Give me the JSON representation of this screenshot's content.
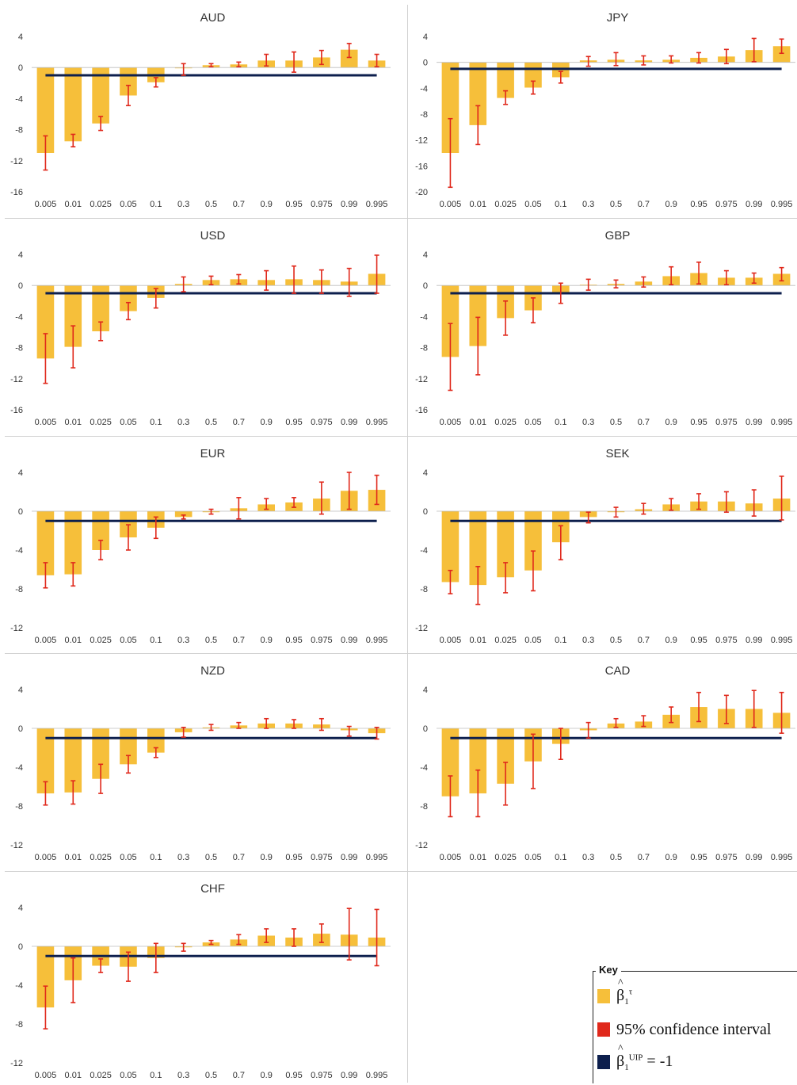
{
  "colors": {
    "bar": "#f6bf3a",
    "ci": "#e0281b",
    "uip": "#0d1f4d",
    "axis": "#444444",
    "text": "#333333"
  },
  "chart_data": [
    {
      "type": "bar",
      "title": "AUD",
      "categories": [
        "0.005",
        "0.01",
        "0.025",
        "0.05",
        "0.1",
        "0.3",
        "0.5",
        "0.7",
        "0.9",
        "0.95",
        "0.975",
        "0.99",
        "0.995"
      ],
      "ylim": [
        -16,
        4
      ],
      "yticks": [
        4,
        0,
        -4,
        -8,
        -12,
        -16
      ],
      "series": [
        {
          "values": [
            -11.0,
            -9.5,
            -7.2,
            -3.6,
            -1.9,
            -0.1,
            0.3,
            0.4,
            0.9,
            0.9,
            1.3,
            2.3,
            0.9
          ]
        },
        {
          "ci_low": [
            -13.2,
            -10.2,
            -8.1,
            -4.9,
            -2.5,
            -1.0,
            0.1,
            0.1,
            0.2,
            -0.6,
            0.4,
            1.3,
            0.1
          ],
          "ci_high": [
            -8.8,
            -8.6,
            -6.3,
            -2.3,
            -1.3,
            0.5,
            0.5,
            0.7,
            1.7,
            2.0,
            2.2,
            3.1,
            1.7
          ]
        },
        {
          "uip": -1
        }
      ]
    },
    {
      "type": "bar",
      "title": "JPY",
      "categories": [
        "0.005",
        "0.01",
        "0.025",
        "0.05",
        "0.1",
        "0.3",
        "0.5",
        "0.7",
        "0.9",
        "0.95",
        "0.975",
        "0.99",
        "0.995"
      ],
      "ylim": [
        -20,
        4
      ],
      "yticks": [
        4,
        0,
        -4,
        -8,
        -12,
        -16,
        -20
      ],
      "series": [
        {
          "values": [
            -14.0,
            -9.7,
            -5.5,
            -3.9,
            -2.3,
            0.3,
            0.4,
            0.3,
            0.4,
            0.7,
            0.9,
            1.9,
            2.5
          ]
        },
        {
          "ci_low": [
            -19.3,
            -12.7,
            -6.5,
            -4.9,
            -3.2,
            -0.6,
            -0.5,
            -0.4,
            -0.1,
            -0.1,
            -0.2,
            0.1,
            1.4
          ],
          "ci_high": [
            -8.7,
            -6.7,
            -4.4,
            -2.9,
            -1.4,
            0.9,
            1.5,
            1.0,
            1.0,
            1.5,
            2.0,
            3.7,
            3.6
          ]
        },
        {
          "uip": -1
        }
      ]
    },
    {
      "type": "bar",
      "title": "USD",
      "categories": [
        "0.005",
        "0.01",
        "0.025",
        "0.05",
        "0.1",
        "0.3",
        "0.5",
        "0.7",
        "0.9",
        "0.95",
        "0.975",
        "0.99",
        "0.995"
      ],
      "ylim": [
        -16,
        4
      ],
      "yticks": [
        4,
        0,
        -4,
        -8,
        -12,
        -16
      ],
      "series": [
        {
          "values": [
            -9.4,
            -7.9,
            -5.9,
            -3.3,
            -1.6,
            0.2,
            0.7,
            0.8,
            0.7,
            0.8,
            0.7,
            0.5,
            1.5
          ]
        },
        {
          "ci_low": [
            -12.6,
            -10.6,
            -7.1,
            -4.4,
            -2.9,
            -0.8,
            0.1,
            0.2,
            -0.6,
            -1.0,
            -1.0,
            -1.4,
            -1.0
          ],
          "ci_high": [
            -6.2,
            -5.2,
            -4.7,
            -2.2,
            -0.4,
            1.1,
            1.2,
            1.4,
            1.9,
            2.5,
            2.0,
            2.2,
            3.9
          ]
        },
        {
          "uip": -1
        }
      ]
    },
    {
      "type": "bar",
      "title": "GBP",
      "categories": [
        "0.005",
        "0.01",
        "0.025",
        "0.05",
        "0.1",
        "0.3",
        "0.5",
        "0.7",
        "0.9",
        "0.95",
        "0.975",
        "0.99",
        "0.995"
      ],
      "ylim": [
        -16,
        4
      ],
      "yticks": [
        4,
        0,
        -4,
        -8,
        -12,
        -16
      ],
      "series": [
        {
          "values": [
            -9.2,
            -7.8,
            -4.2,
            -3.2,
            -1.0,
            0.1,
            0.2,
            0.5,
            1.2,
            1.6,
            1.0,
            1.0,
            1.5
          ]
        },
        {
          "ci_low": [
            -13.5,
            -11.5,
            -6.4,
            -4.8,
            -2.3,
            -0.6,
            -0.3,
            -0.2,
            0.1,
            0.2,
            0.1,
            0.3,
            0.6
          ],
          "ci_high": [
            -4.9,
            -4.1,
            -2.0,
            -1.6,
            0.3,
            0.8,
            0.7,
            1.1,
            2.4,
            3.0,
            1.9,
            1.6,
            2.3
          ]
        },
        {
          "uip": -1
        }
      ]
    },
    {
      "type": "bar",
      "title": "EUR",
      "categories": [
        "0.005",
        "0.01",
        "0.025",
        "0.05",
        "0.1",
        "0.3",
        "0.5",
        "0.7",
        "0.9",
        "0.95",
        "0.975",
        "0.99",
        "0.995"
      ],
      "ylim": [
        -12,
        4
      ],
      "yticks": [
        4,
        0,
        -4,
        -8,
        -12
      ],
      "series": [
        {
          "values": [
            -6.6,
            -6.5,
            -4.0,
            -2.7,
            -1.7,
            -0.6,
            -0.1,
            0.3,
            0.7,
            0.9,
            1.3,
            2.1,
            2.2
          ]
        },
        {
          "ci_low": [
            -7.9,
            -7.7,
            -5.0,
            -4.0,
            -2.8,
            -0.8,
            -0.3,
            -0.8,
            0.2,
            0.4,
            -0.3,
            0.2,
            0.7
          ],
          "ci_high": [
            -5.3,
            -5.3,
            -3.0,
            -1.4,
            -0.6,
            -0.4,
            0.2,
            1.4,
            1.3,
            1.4,
            3.0,
            4.0,
            3.7
          ]
        },
        {
          "uip": -1
        }
      ]
    },
    {
      "type": "bar",
      "title": "SEK",
      "categories": [
        "0.005",
        "0.01",
        "0.025",
        "0.05",
        "0.1",
        "0.3",
        "0.5",
        "0.7",
        "0.9",
        "0.95",
        "0.975",
        "0.99",
        "0.995"
      ],
      "ylim": [
        -12,
        4
      ],
      "yticks": [
        4,
        0,
        -4,
        -8,
        -12
      ],
      "series": [
        {
          "values": [
            -7.3,
            -7.6,
            -6.8,
            -6.1,
            -3.2,
            -0.6,
            -0.1,
            0.2,
            0.7,
            1.0,
            1.0,
            0.8,
            1.3
          ]
        },
        {
          "ci_low": [
            -8.5,
            -9.6,
            -8.4,
            -8.2,
            -5.0,
            -1.2,
            -0.6,
            -0.3,
            0.1,
            0.2,
            -0.1,
            -0.5,
            -0.9
          ],
          "ci_high": [
            -6.1,
            -5.7,
            -5.3,
            -4.1,
            -1.5,
            -0.1,
            0.4,
            0.8,
            1.3,
            1.8,
            2.0,
            2.2,
            3.6
          ]
        },
        {
          "uip": -1
        }
      ]
    },
    {
      "type": "bar",
      "title": "NZD",
      "categories": [
        "0.005",
        "0.01",
        "0.025",
        "0.05",
        "0.1",
        "0.3",
        "0.5",
        "0.7",
        "0.9",
        "0.95",
        "0.975",
        "0.99",
        "0.995"
      ],
      "ylim": [
        -12,
        4
      ],
      "yticks": [
        4,
        0,
        -4,
        -8,
        -12
      ],
      "series": [
        {
          "values": [
            -6.7,
            -6.6,
            -5.2,
            -3.7,
            -2.5,
            -0.4,
            0.1,
            0.3,
            0.5,
            0.5,
            0.4,
            -0.2,
            -0.5
          ]
        },
        {
          "ci_low": [
            -7.9,
            -7.8,
            -6.7,
            -4.6,
            -3.0,
            -0.9,
            -0.2,
            0.0,
            0.0,
            0.0,
            -0.2,
            -0.8,
            -1.1
          ],
          "ci_high": [
            -5.5,
            -5.4,
            -3.7,
            -2.8,
            -2.0,
            0.1,
            0.4,
            0.6,
            1.0,
            0.9,
            1.0,
            0.2,
            0.1
          ]
        },
        {
          "uip": -1
        }
      ]
    },
    {
      "type": "bar",
      "title": "CAD",
      "categories": [
        "0.005",
        "0.01",
        "0.025",
        "0.05",
        "0.1",
        "0.3",
        "0.5",
        "0.7",
        "0.9",
        "0.95",
        "0.975",
        "0.99",
        "0.995"
      ],
      "ylim": [
        -12,
        4
      ],
      "yticks": [
        4,
        0,
        -4,
        -8,
        -12
      ],
      "series": [
        {
          "values": [
            -7.0,
            -6.7,
            -5.7,
            -3.4,
            -1.6,
            -0.2,
            0.5,
            0.7,
            1.4,
            2.2,
            2.0,
            2.0,
            1.6
          ]
        },
        {
          "ci_low": [
            -9.1,
            -9.1,
            -7.9,
            -6.2,
            -3.2,
            -1.0,
            0.1,
            0.2,
            0.6,
            0.7,
            0.5,
            0.1,
            -0.5
          ],
          "ci_high": [
            -4.9,
            -4.3,
            -3.5,
            -0.6,
            0.0,
            0.6,
            1.0,
            1.3,
            2.2,
            3.7,
            3.4,
            3.9,
            3.7
          ]
        },
        {
          "uip": -1
        }
      ]
    },
    {
      "type": "bar",
      "title": "CHF",
      "categories": [
        "0.005",
        "0.01",
        "0.025",
        "0.05",
        "0.1",
        "0.3",
        "0.5",
        "0.7",
        "0.9",
        "0.95",
        "0.975",
        "0.99",
        "0.995"
      ],
      "ylim": [
        -12,
        4
      ],
      "yticks": [
        4,
        0,
        -4,
        -8,
        -12
      ],
      "series": [
        {
          "values": [
            -6.3,
            -3.5,
            -2.0,
            -2.1,
            -1.2,
            -0.1,
            0.4,
            0.7,
            1.1,
            0.9,
            1.3,
            1.2,
            0.9
          ]
        },
        {
          "ci_low": [
            -8.5,
            -5.8,
            -2.7,
            -3.6,
            -2.7,
            -0.5,
            0.2,
            0.2,
            0.4,
            0.0,
            0.4,
            -1.4,
            -2.0
          ],
          "ci_high": [
            -4.1,
            -1.2,
            -1.3,
            -0.6,
            0.3,
            0.3,
            0.6,
            1.2,
            1.8,
            1.8,
            2.3,
            3.9,
            3.8
          ]
        },
        {
          "uip": -1
        }
      ]
    }
  ],
  "key": {
    "title": "Key",
    "items": [
      {
        "name": "β̂₁^τ",
        "base": "β",
        "sub": "1",
        "sup": "τ",
        "suffix": ""
      },
      {
        "name": "95% confidence interval",
        "label": "95% confidence interval"
      },
      {
        "name": "β̂₁^UIP = -1",
        "base": "β",
        "sub": "1",
        "sup": "UIP",
        "suffix": " = -1"
      }
    ]
  }
}
